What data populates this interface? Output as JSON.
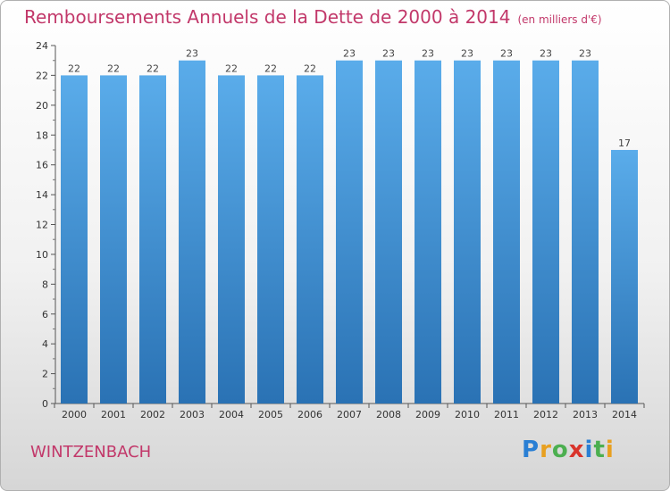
{
  "header": {
    "title": "Remboursements Annuels de la Dette de 2000 à 2014",
    "subtitle": "(en milliers d'€)"
  },
  "footer": {
    "location": "WINTZENBACH",
    "logo_text": "Proxiti"
  },
  "colors": {
    "bar_top": "#5aacea",
    "bar_bottom": "#2a72b4",
    "title": "#c2386a"
  },
  "chart_data": {
    "type": "bar",
    "categories": [
      "2000",
      "2001",
      "2002",
      "2003",
      "2004",
      "2005",
      "2006",
      "2007",
      "2008",
      "2009",
      "2010",
      "2011",
      "2012",
      "2013",
      "2014"
    ],
    "values": [
      22,
      22,
      22,
      23,
      22,
      22,
      22,
      23,
      23,
      23,
      23,
      23,
      23,
      23,
      17
    ],
    "title": "Remboursements Annuels de la Dette de 2000 à 2014",
    "subtitle": "(en milliers d'€)",
    "xlabel": "",
    "ylabel": "",
    "ylim": [
      0,
      24
    ],
    "yticks": [
      0,
      2,
      4,
      6,
      8,
      10,
      12,
      14,
      16,
      18,
      20,
      22,
      24
    ],
    "grid": false,
    "legend": "none"
  }
}
